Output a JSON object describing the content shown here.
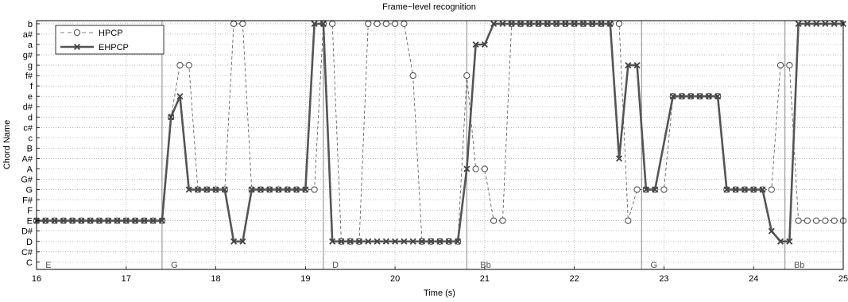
{
  "chart_data": {
    "type": "line",
    "title": "Frame−level recognition",
    "xlabel": "Time (s)",
    "ylabel": "Chord Name",
    "xlim": [
      16,
      25
    ],
    "x_ticks": [
      "16",
      "17",
      "18",
      "19",
      "20",
      "21",
      "22",
      "23",
      "24",
      "25"
    ],
    "y_categories": [
      "C",
      "C#",
      "D",
      "D#",
      "E",
      "F",
      "F#",
      "G",
      "G#",
      "A",
      "A#",
      "B",
      "c",
      "c#",
      "d",
      "d#",
      "e",
      "f",
      "f#",
      "g",
      "g#",
      "a",
      "a#",
      "b"
    ],
    "grid": true,
    "legend_position": "top-left",
    "boundaries": [
      17.4,
      19.2,
      20.8,
      22.75,
      24.35
    ],
    "segment_labels": [
      {
        "t": 16.1,
        "label": "E"
      },
      {
        "t": 17.5,
        "label": "G"
      },
      {
        "t": 19.3,
        "label": "D"
      },
      {
        "t": 20.95,
        "label": "Bb"
      },
      {
        "t": 22.85,
        "label": "G"
      },
      {
        "t": 24.45,
        "label": "Bb"
      }
    ],
    "series": [
      {
        "name": "HPCP",
        "values": [
          {
            "t": 16.0,
            "chord": "E"
          },
          {
            "t": 16.1,
            "chord": "E"
          },
          {
            "t": 16.2,
            "chord": "E"
          },
          {
            "t": 16.3,
            "chord": "E"
          },
          {
            "t": 16.4,
            "chord": "E"
          },
          {
            "t": 16.5,
            "chord": "E"
          },
          {
            "t": 16.6,
            "chord": "E"
          },
          {
            "t": 16.7,
            "chord": "E"
          },
          {
            "t": 16.8,
            "chord": "E"
          },
          {
            "t": 16.9,
            "chord": "E"
          },
          {
            "t": 17.0,
            "chord": "E"
          },
          {
            "t": 17.1,
            "chord": "E"
          },
          {
            "t": 17.2,
            "chord": "E"
          },
          {
            "t": 17.3,
            "chord": "E"
          },
          {
            "t": 17.4,
            "chord": "E"
          },
          {
            "t": 17.5,
            "chord": "d"
          },
          {
            "t": 17.6,
            "chord": "g"
          },
          {
            "t": 17.7,
            "chord": "g"
          },
          {
            "t": 17.8,
            "chord": "G"
          },
          {
            "t": 17.9,
            "chord": "G"
          },
          {
            "t": 18.0,
            "chord": "G"
          },
          {
            "t": 18.1,
            "chord": "G"
          },
          {
            "t": 18.2,
            "chord": "b"
          },
          {
            "t": 18.3,
            "chord": "b"
          },
          {
            "t": 18.4,
            "chord": "G"
          },
          {
            "t": 18.5,
            "chord": "G"
          },
          {
            "t": 18.6,
            "chord": "G"
          },
          {
            "t": 18.7,
            "chord": "G"
          },
          {
            "t": 18.8,
            "chord": "G"
          },
          {
            "t": 18.9,
            "chord": "G"
          },
          {
            "t": 19.0,
            "chord": "G"
          },
          {
            "t": 19.1,
            "chord": "G"
          },
          {
            "t": 19.2,
            "chord": "b"
          },
          {
            "t": 19.3,
            "chord": "b"
          },
          {
            "t": 19.4,
            "chord": "D"
          },
          {
            "t": 19.5,
            "chord": "D"
          },
          {
            "t": 19.6,
            "chord": "D"
          },
          {
            "t": 19.7,
            "chord": "b"
          },
          {
            "t": 19.8,
            "chord": "b"
          },
          {
            "t": 19.9,
            "chord": "b"
          },
          {
            "t": 20.0,
            "chord": "b"
          },
          {
            "t": 20.1,
            "chord": "b"
          },
          {
            "t": 20.2,
            "chord": "f#"
          },
          {
            "t": 20.3,
            "chord": "D"
          },
          {
            "t": 20.4,
            "chord": "D"
          },
          {
            "t": 20.5,
            "chord": "D"
          },
          {
            "t": 20.6,
            "chord": "D"
          },
          {
            "t": 20.7,
            "chord": "D"
          },
          {
            "t": 20.8,
            "chord": "f#"
          },
          {
            "t": 20.9,
            "chord": "A"
          },
          {
            "t": 21.0,
            "chord": "A"
          },
          {
            "t": 21.1,
            "chord": "E"
          },
          {
            "t": 21.2,
            "chord": "E"
          },
          {
            "t": 21.3,
            "chord": "b"
          },
          {
            "t": 21.4,
            "chord": "b"
          },
          {
            "t": 21.5,
            "chord": "b"
          },
          {
            "t": 21.6,
            "chord": "b"
          },
          {
            "t": 21.7,
            "chord": "b"
          },
          {
            "t": 21.8,
            "chord": "b"
          },
          {
            "t": 21.9,
            "chord": "b"
          },
          {
            "t": 22.0,
            "chord": "b"
          },
          {
            "t": 22.1,
            "chord": "b"
          },
          {
            "t": 22.2,
            "chord": "b"
          },
          {
            "t": 22.3,
            "chord": "b"
          },
          {
            "t": 22.4,
            "chord": "b"
          },
          {
            "t": 22.5,
            "chord": "b"
          },
          {
            "t": 22.6,
            "chord": "E"
          },
          {
            "t": 22.7,
            "chord": "G"
          },
          {
            "t": 22.8,
            "chord": "G"
          },
          {
            "t": 22.9,
            "chord": "G"
          },
          {
            "t": 23.0,
            "chord": "G"
          },
          {
            "t": 23.1,
            "chord": "e"
          },
          {
            "t": 23.2,
            "chord": "e"
          },
          {
            "t": 23.3,
            "chord": "e"
          },
          {
            "t": 23.4,
            "chord": "e"
          },
          {
            "t": 23.5,
            "chord": "e"
          },
          {
            "t": 23.6,
            "chord": "e"
          },
          {
            "t": 23.7,
            "chord": "G"
          },
          {
            "t": 23.8,
            "chord": "G"
          },
          {
            "t": 23.9,
            "chord": "G"
          },
          {
            "t": 24.0,
            "chord": "G"
          },
          {
            "t": 24.1,
            "chord": "G"
          },
          {
            "t": 24.2,
            "chord": "G"
          },
          {
            "t": 24.3,
            "chord": "g"
          },
          {
            "t": 24.4,
            "chord": "g"
          },
          {
            "t": 24.5,
            "chord": "E"
          },
          {
            "t": 24.6,
            "chord": "E"
          },
          {
            "t": 24.7,
            "chord": "E"
          },
          {
            "t": 24.8,
            "chord": "E"
          },
          {
            "t": 24.9,
            "chord": "E"
          },
          {
            "t": 25.0,
            "chord": "E"
          }
        ]
      },
      {
        "name": "EHPCP",
        "values": [
          {
            "t": 16.0,
            "chord": "E"
          },
          {
            "t": 16.1,
            "chord": "E"
          },
          {
            "t": 16.2,
            "chord": "E"
          },
          {
            "t": 16.3,
            "chord": "E"
          },
          {
            "t": 16.4,
            "chord": "E"
          },
          {
            "t": 16.5,
            "chord": "E"
          },
          {
            "t": 16.6,
            "chord": "E"
          },
          {
            "t": 16.7,
            "chord": "E"
          },
          {
            "t": 16.8,
            "chord": "E"
          },
          {
            "t": 16.9,
            "chord": "E"
          },
          {
            "t": 17.0,
            "chord": "E"
          },
          {
            "t": 17.1,
            "chord": "E"
          },
          {
            "t": 17.2,
            "chord": "E"
          },
          {
            "t": 17.3,
            "chord": "E"
          },
          {
            "t": 17.4,
            "chord": "E"
          },
          {
            "t": 17.5,
            "chord": "d"
          },
          {
            "t": 17.6,
            "chord": "e"
          },
          {
            "t": 17.7,
            "chord": "G"
          },
          {
            "t": 17.8,
            "chord": "G"
          },
          {
            "t": 17.9,
            "chord": "G"
          },
          {
            "t": 18.0,
            "chord": "G"
          },
          {
            "t": 18.1,
            "chord": "G"
          },
          {
            "t": 18.2,
            "chord": "D"
          },
          {
            "t": 18.3,
            "chord": "D"
          },
          {
            "t": 18.4,
            "chord": "G"
          },
          {
            "t": 18.5,
            "chord": "G"
          },
          {
            "t": 18.6,
            "chord": "G"
          },
          {
            "t": 18.7,
            "chord": "G"
          },
          {
            "t": 18.8,
            "chord": "G"
          },
          {
            "t": 18.9,
            "chord": "G"
          },
          {
            "t": 19.0,
            "chord": "G"
          },
          {
            "t": 19.1,
            "chord": "b"
          },
          {
            "t": 19.2,
            "chord": "b"
          },
          {
            "t": 19.3,
            "chord": "D"
          },
          {
            "t": 19.4,
            "chord": "D"
          },
          {
            "t": 19.5,
            "chord": "D"
          },
          {
            "t": 19.6,
            "chord": "D"
          },
          {
            "t": 19.7,
            "chord": "D"
          },
          {
            "t": 19.8,
            "chord": "D"
          },
          {
            "t": 19.9,
            "chord": "D"
          },
          {
            "t": 20.0,
            "chord": "D"
          },
          {
            "t": 20.1,
            "chord": "D"
          },
          {
            "t": 20.2,
            "chord": "D"
          },
          {
            "t": 20.3,
            "chord": "D"
          },
          {
            "t": 20.4,
            "chord": "D"
          },
          {
            "t": 20.5,
            "chord": "D"
          },
          {
            "t": 20.6,
            "chord": "D"
          },
          {
            "t": 20.7,
            "chord": "D"
          },
          {
            "t": 20.8,
            "chord": "A"
          },
          {
            "t": 20.9,
            "chord": "a"
          },
          {
            "t": 21.0,
            "chord": "a"
          },
          {
            "t": 21.1,
            "chord": "b"
          },
          {
            "t": 21.2,
            "chord": "b"
          },
          {
            "t": 21.3,
            "chord": "b"
          },
          {
            "t": 21.4,
            "chord": "b"
          },
          {
            "t": 21.5,
            "chord": "b"
          },
          {
            "t": 21.6,
            "chord": "b"
          },
          {
            "t": 21.7,
            "chord": "b"
          },
          {
            "t": 21.8,
            "chord": "b"
          },
          {
            "t": 21.9,
            "chord": "b"
          },
          {
            "t": 22.0,
            "chord": "b"
          },
          {
            "t": 22.1,
            "chord": "b"
          },
          {
            "t": 22.2,
            "chord": "b"
          },
          {
            "t": 22.3,
            "chord": "b"
          },
          {
            "t": 22.4,
            "chord": "b"
          },
          {
            "t": 22.5,
            "chord": "A#"
          },
          {
            "t": 22.6,
            "chord": "g"
          },
          {
            "t": 22.7,
            "chord": "g"
          },
          {
            "t": 22.8,
            "chord": "G"
          },
          {
            "t": 22.9,
            "chord": "G"
          },
          {
            "t": 23.1,
            "chord": "e"
          },
          {
            "t": 23.2,
            "chord": "e"
          },
          {
            "t": 23.3,
            "chord": "e"
          },
          {
            "t": 23.4,
            "chord": "e"
          },
          {
            "t": 23.5,
            "chord": "e"
          },
          {
            "t": 23.6,
            "chord": "e"
          },
          {
            "t": 23.7,
            "chord": "G"
          },
          {
            "t": 23.8,
            "chord": "G"
          },
          {
            "t": 23.9,
            "chord": "G"
          },
          {
            "t": 24.0,
            "chord": "G"
          },
          {
            "t": 24.1,
            "chord": "G"
          },
          {
            "t": 24.2,
            "chord": "D#"
          },
          {
            "t": 24.3,
            "chord": "D"
          },
          {
            "t": 24.4,
            "chord": "D"
          },
          {
            "t": 24.5,
            "chord": "b"
          },
          {
            "t": 24.6,
            "chord": "b"
          },
          {
            "t": 24.7,
            "chord": "b"
          },
          {
            "t": 24.8,
            "chord": "b"
          },
          {
            "t": 24.9,
            "chord": "b"
          },
          {
            "t": 25.0,
            "chord": "b"
          }
        ]
      }
    ]
  }
}
